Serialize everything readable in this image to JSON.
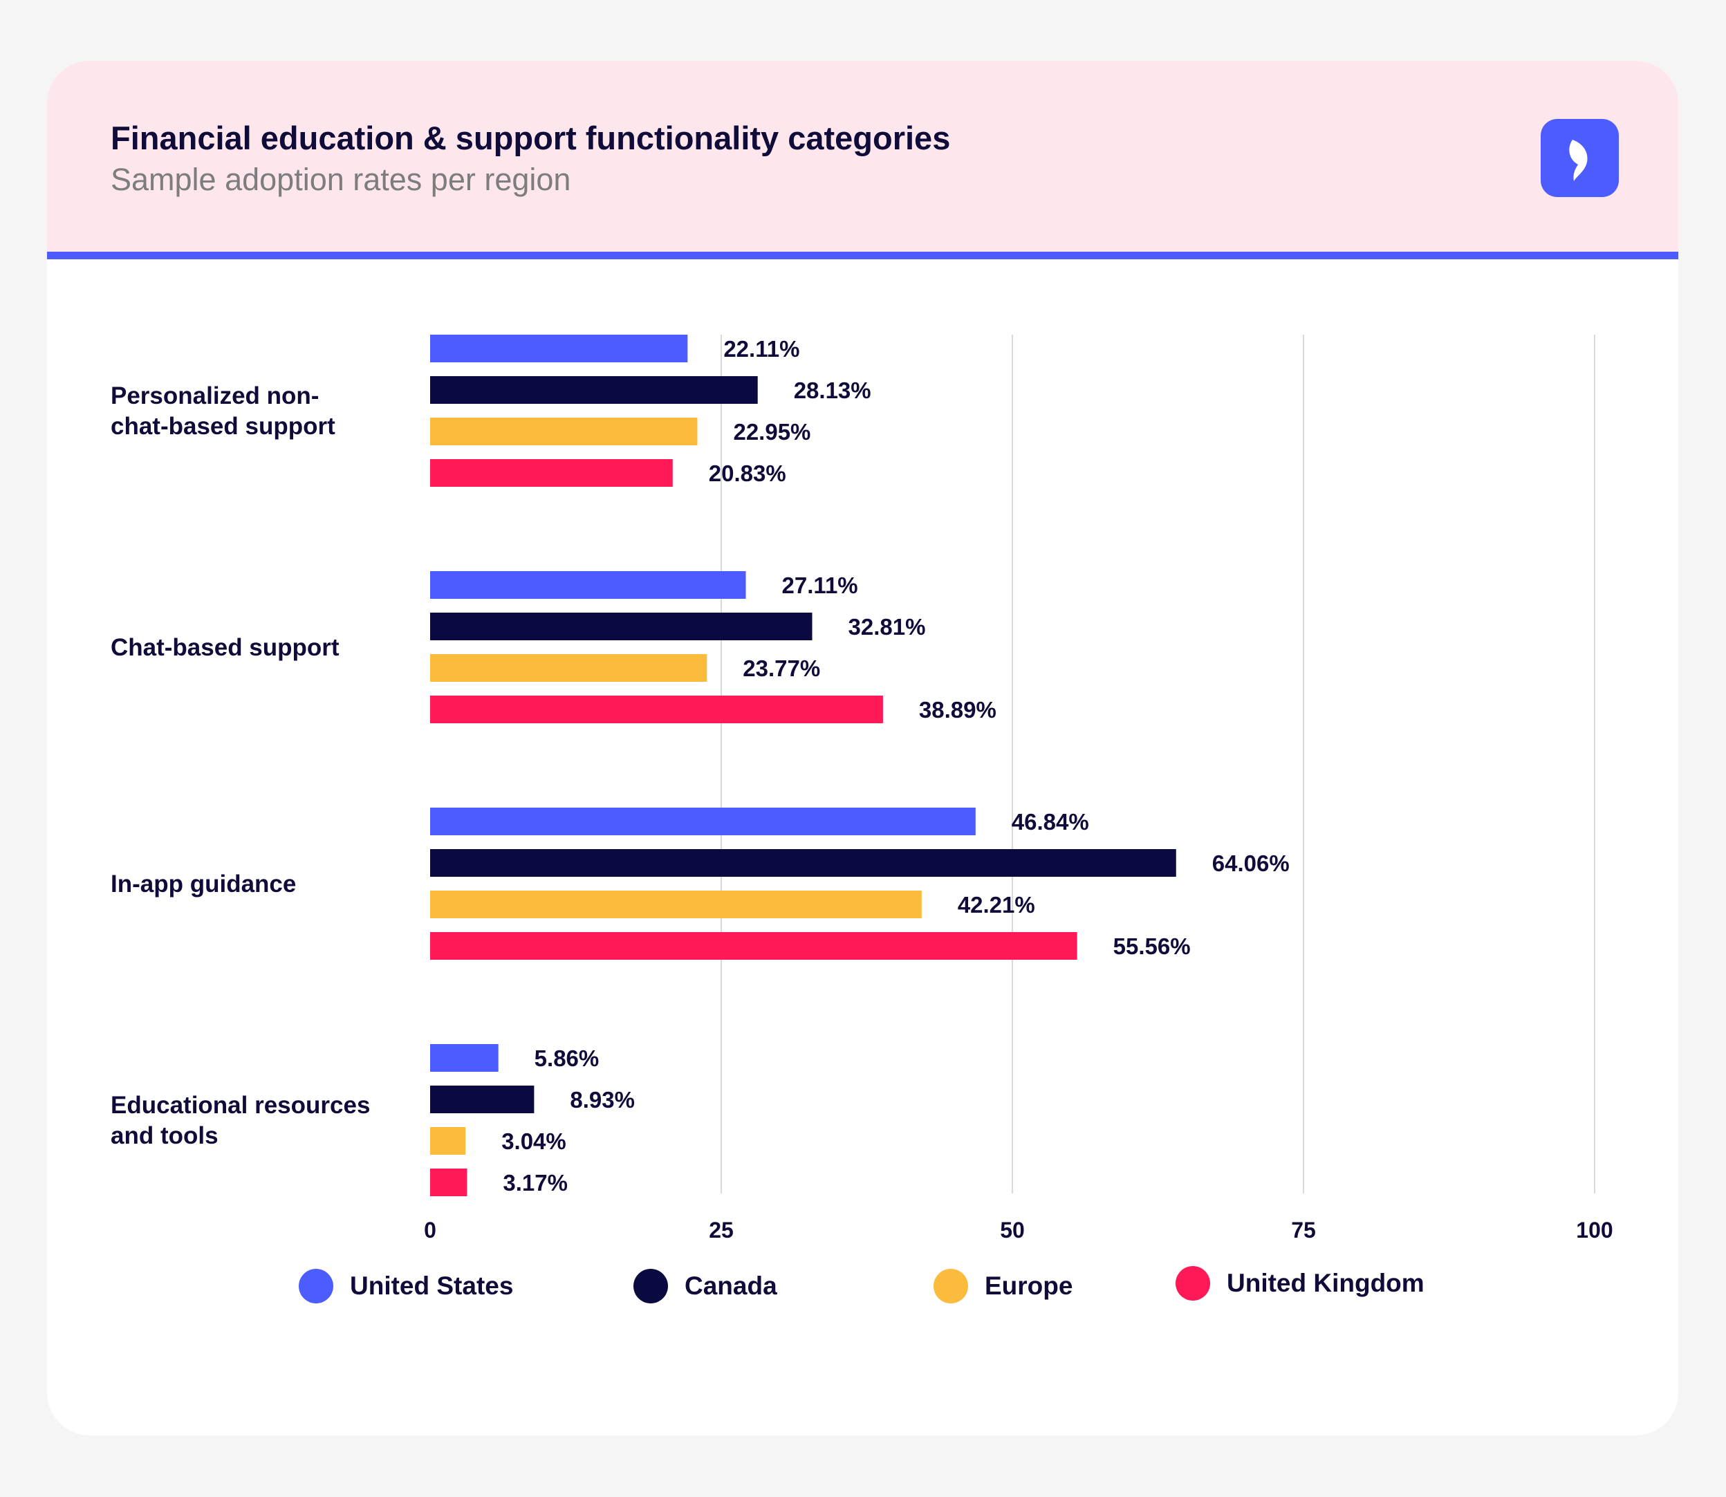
{
  "header": {
    "title": "Financial education & support functionality categories",
    "subtitle": "Sample adoption rates per region",
    "logo_icon": "brand-leaf-icon"
  },
  "colors": {
    "accent": "#4d5cff",
    "header_bg": "#fde6ec",
    "text_dark": "#0f0c3a",
    "grid": "#d9d9d9"
  },
  "legend": {
    "items": [
      {
        "label": "United States",
        "color": "#4d5cff"
      },
      {
        "label": "Canada",
        "color": "#0a0a40"
      },
      {
        "label": "Europe",
        "color": "#fbbb3c"
      },
      {
        "label": "United Kingdom",
        "color": "#ff1a57"
      }
    ]
  },
  "chart_data": {
    "type": "bar",
    "orientation": "horizontal",
    "categories": [
      "Personalized non-chat-based support",
      "Chat-based support",
      "In-app guidance",
      "Educational resources and tools"
    ],
    "category_label_lines": [
      [
        "Personalized non-",
        "chat-based support"
      ],
      [
        "Chat-based support"
      ],
      [
        "In-app guidance"
      ],
      [
        "Educational resources",
        "and tools"
      ]
    ],
    "series": [
      {
        "name": "United States",
        "color": "#4d5cff",
        "values": [
          22.11,
          27.11,
          46.84,
          5.86
        ]
      },
      {
        "name": "Canada",
        "color": "#0a0a40",
        "values": [
          28.13,
          32.81,
          64.06,
          8.93
        ]
      },
      {
        "name": "Europe",
        "color": "#fbbb3c",
        "values": [
          22.95,
          23.77,
          42.21,
          3.04
        ]
      },
      {
        "name": "United Kingdom",
        "color": "#ff1a57",
        "values": [
          20.83,
          38.89,
          55.56,
          3.17
        ]
      }
    ],
    "value_suffix": "%",
    "xlim": [
      0,
      100
    ],
    "xticks": [
      0,
      25,
      50,
      75,
      100
    ],
    "grid": true,
    "legend_position": "bottom"
  }
}
